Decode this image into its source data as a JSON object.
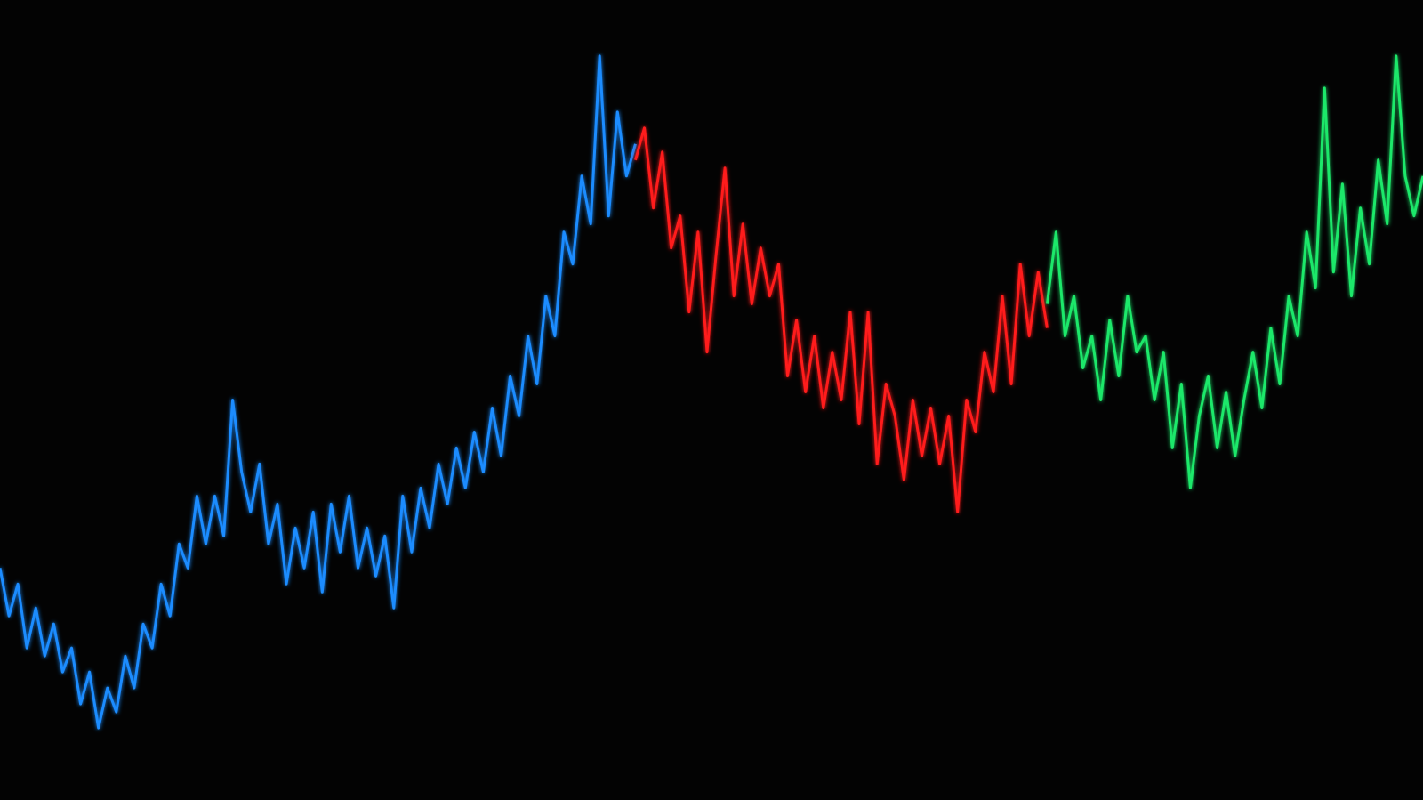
{
  "chart_data": {
    "type": "line",
    "title": "",
    "xlabel": "",
    "ylabel": "",
    "ylim": [
      0,
      100
    ],
    "grid": false,
    "axes_visible": false,
    "legend": "none",
    "background": "#030303",
    "series": [
      {
        "color": "#1a8cff",
        "values": [
          29,
          23,
          27,
          19,
          24,
          18,
          22,
          16,
          19,
          12,
          16,
          9,
          14,
          11,
          18,
          14,
          22,
          19,
          27,
          23,
          32,
          29,
          38,
          32,
          38,
          33,
          50,
          41,
          36,
          42,
          32,
          37,
          27,
          34,
          29,
          36,
          26,
          37,
          31,
          38,
          29,
          34,
          28,
          33,
          24,
          38,
          31,
          39,
          34,
          42,
          37,
          44,
          39,
          46,
          41,
          49,
          43,
          53,
          48,
          58,
          52,
          63,
          58,
          71,
          67,
          78,
          72,
          93,
          73,
          86,
          78,
          82
        ]
      },
      {
        "color": "#ff1a1a",
        "values": [
          80,
          84,
          74,
          81,
          69,
          73,
          61,
          71,
          56,
          68,
          79,
          63,
          72,
          62,
          69,
          63,
          67,
          53,
          60,
          51,
          58,
          49,
          56,
          50,
          61,
          47,
          61,
          42,
          52,
          48,
          40,
          50,
          43,
          49,
          42,
          48,
          36,
          50,
          46,
          56,
          51,
          63,
          52,
          67,
          58,
          66,
          59
        ]
      },
      {
        "color": "#1ee86a",
        "values": [
          62,
          71,
          58,
          63,
          54,
          58,
          50,
          60,
          53,
          63,
          56,
          58,
          50,
          56,
          44,
          52,
          39,
          48,
          53,
          44,
          51,
          43,
          50,
          56,
          49,
          59,
          52,
          63,
          58,
          71,
          64,
          89,
          66,
          77,
          63,
          74,
          67,
          80,
          72,
          93,
          78,
          73,
          78
        ]
      }
    ]
  }
}
